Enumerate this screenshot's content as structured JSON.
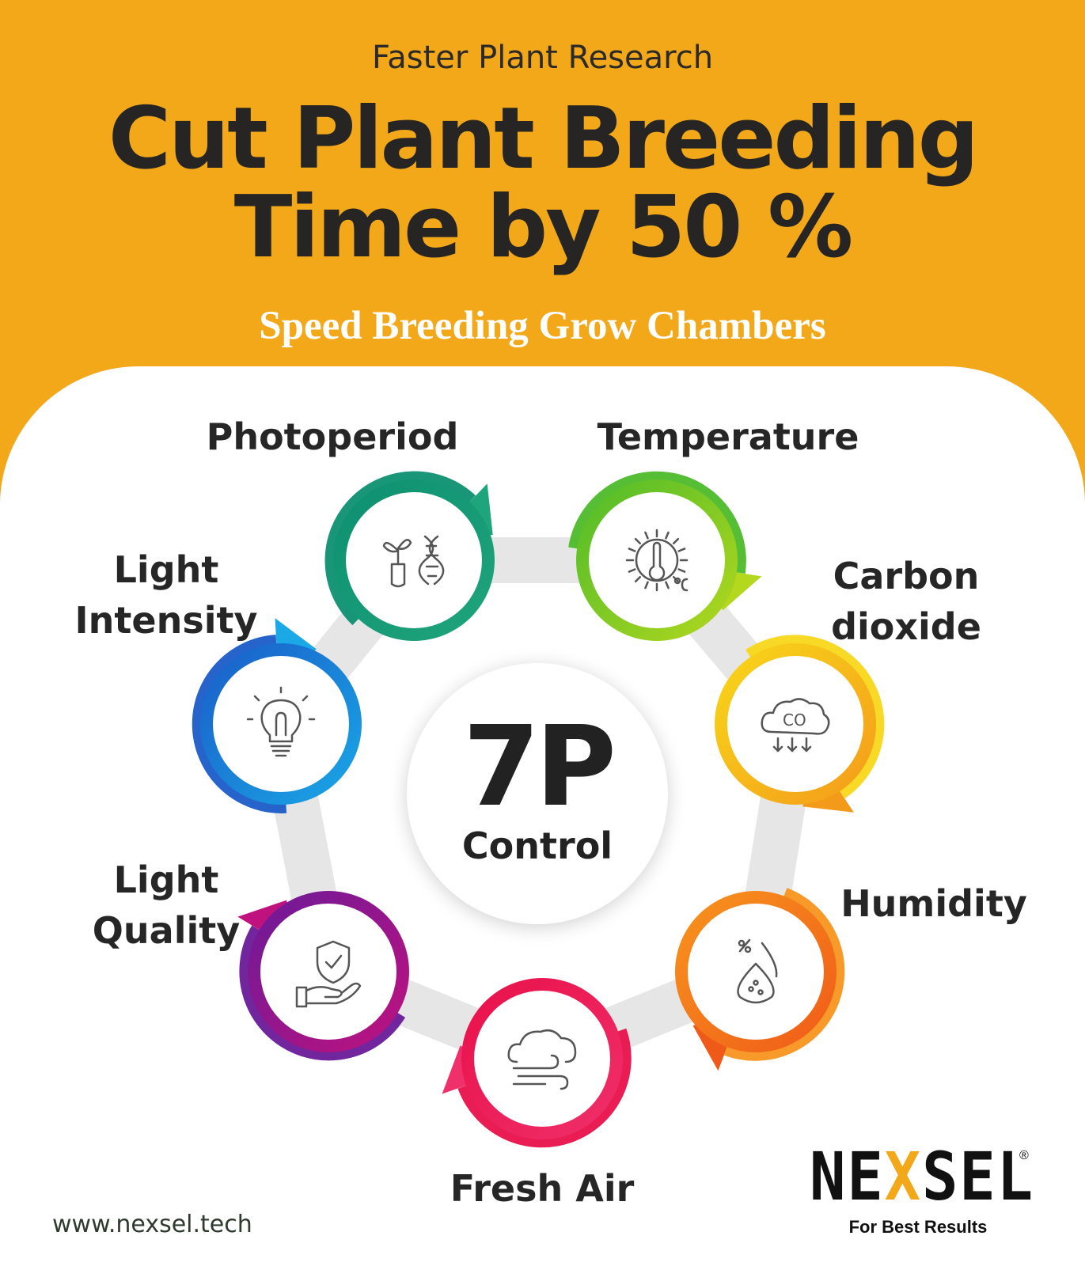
{
  "header": {
    "kicker": "Faster Plant Research",
    "title_line1": "Cut Plant Breeding",
    "title_line2": "Time by 50 %",
    "subtitle": "Speed Breeding Grow Chambers"
  },
  "center": {
    "big": "7P",
    "label": "Control"
  },
  "parameters": [
    {
      "label_lines": [
        "Photoperiod"
      ],
      "icon": "plant-dna-icon",
      "color_from": "#0d8f70",
      "color_to": "#1fa57c"
    },
    {
      "label_lines": [
        "Temperature"
      ],
      "icon": "sun-thermometer-icon",
      "color_from": "#4dbb2a",
      "color_to": "#b4d81e"
    },
    {
      "label_lines": [
        "Carbon",
        "dioxide"
      ],
      "icon": "co2-cloud-icon",
      "color_from": "#f8d81a",
      "color_to": "#f49a1a"
    },
    {
      "label_lines": [
        "Humidity"
      ],
      "icon": "humidity-drop-icon",
      "color_from": "#f7951e",
      "color_to": "#f05a18"
    },
    {
      "label_lines": [
        "Fresh Air"
      ],
      "icon": "cloud-wind-icon",
      "color_from": "#e8104a",
      "color_to": "#f0306a"
    },
    {
      "label_lines": [
        "Light",
        "Quality"
      ],
      "icon": "shield-hand-icon",
      "color_from": "#6a1a99",
      "color_to": "#c0127e"
    },
    {
      "label_lines": [
        "Light",
        "Intensity"
      ],
      "icon": "light-bulb-icon",
      "color_from": "#1a5cc8",
      "color_to": "#1aa8e6"
    }
  ],
  "footer": {
    "url": "www.nexsel.tech",
    "brand_pre": "NE",
    "brand_x": "X",
    "brand_post": "SEL",
    "registered": "®",
    "tagline": "For Best Results"
  }
}
